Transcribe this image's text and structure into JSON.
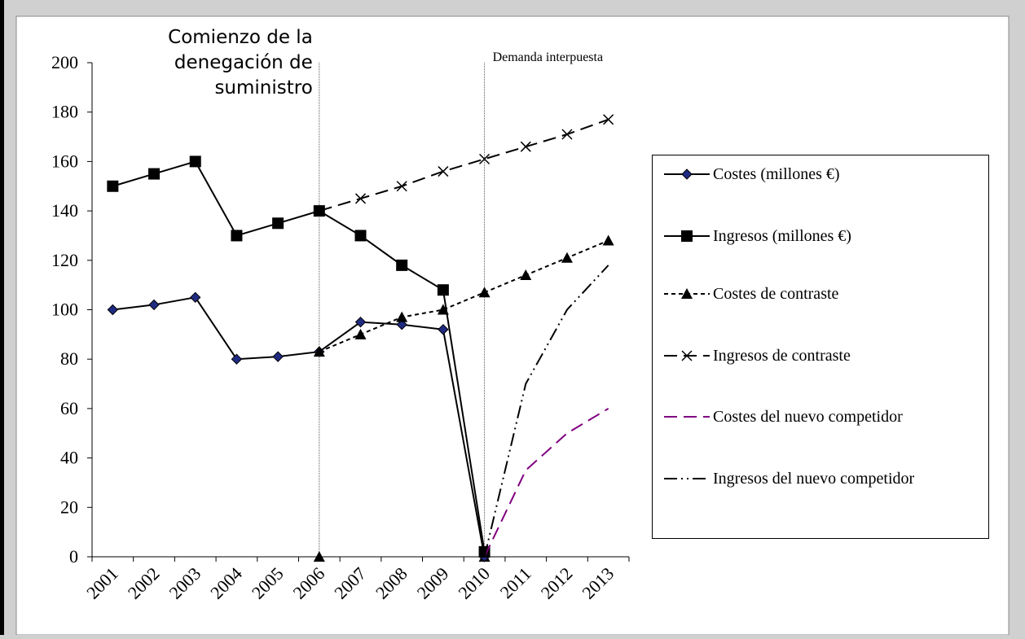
{
  "chart_data": {
    "type": "line",
    "categories": [
      "2001",
      "2002",
      "2003",
      "2004",
      "2005",
      "2006",
      "2007",
      "2008",
      "2009",
      "2010",
      "2011",
      "2012",
      "2013"
    ],
    "ylim": [
      0,
      200
    ],
    "yticks": [
      0,
      20,
      40,
      60,
      80,
      100,
      120,
      140,
      160,
      180,
      200
    ],
    "series": [
      {
        "name": "Costes (millones €)",
        "color": "#000000",
        "marker": "diamond",
        "marker_color": "#1f2a80",
        "dash": "solid",
        "values": [
          100,
          102,
          105,
          80,
          81,
          83,
          95,
          94,
          92,
          0,
          null,
          null,
          null
        ]
      },
      {
        "name": "Ingresos (millones €)",
        "color": "#000000",
        "marker": "square",
        "marker_color": "#000000",
        "dash": "solid",
        "values": [
          150,
          155,
          160,
          130,
          135,
          140,
          130,
          118,
          108,
          2,
          null,
          null,
          null
        ]
      },
      {
        "name": "Costes de contraste",
        "color": "#000000",
        "marker": "triangle",
        "marker_color": "#000000",
        "dash": "short",
        "values": [
          null,
          null,
          null,
          null,
          null,
          83,
          90,
          97,
          100,
          107,
          114,
          121,
          128
        ]
      },
      {
        "name": "Ingresos de contraste",
        "color": "#000000",
        "marker": "x",
        "marker_color": "#000000",
        "dash": "long",
        "values": [
          null,
          null,
          null,
          null,
          null,
          140,
          145,
          150,
          156,
          161,
          166,
          171,
          177
        ]
      },
      {
        "name": "Costes del nuevo competidor",
        "color": "#800080",
        "marker": "none",
        "marker_color": "#800080",
        "dash": "long",
        "values": [
          null,
          null,
          null,
          null,
          null,
          null,
          null,
          null,
          null,
          0,
          35,
          50,
          60
        ]
      },
      {
        "name": "Ingresos del nuevo competidor",
        "color": "#000000",
        "marker": "none",
        "marker_color": "#000000",
        "dash": "dashdotdot",
        "values": [
          null,
          null,
          null,
          null,
          null,
          null,
          null,
          null,
          null,
          0,
          70,
          100,
          118
        ]
      }
    ],
    "annotations": [
      {
        "category": "2006",
        "lines": [
          "Comienzo de la",
          "denegación de",
          "suministro"
        ]
      },
      {
        "category": "2010",
        "lines": [
          "Demanda interpuesta"
        ]
      }
    ]
  }
}
